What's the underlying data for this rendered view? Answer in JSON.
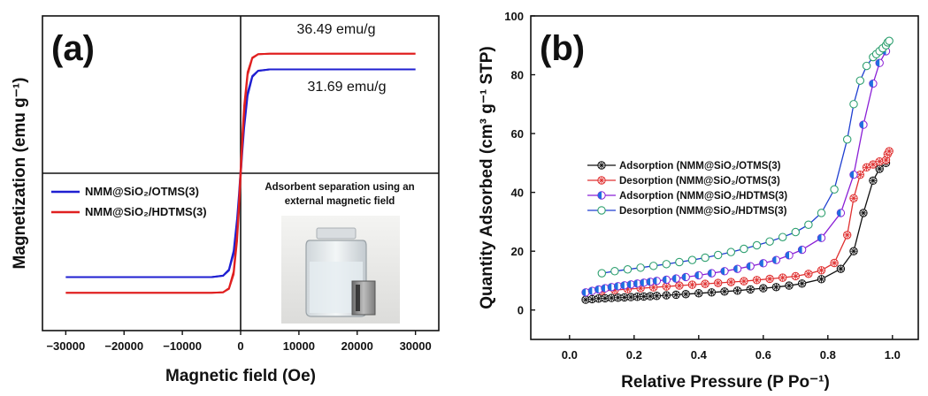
{
  "chart_data": [
    {
      "type": "line",
      "panel_label": "(a)",
      "xlabel": "Magnetic field (Oe)",
      "ylabel": "Magnetization (emu g⁻¹)",
      "xlim": [
        -34000,
        34000
      ],
      "ylim": [
        -48,
        48
      ],
      "xticks": [
        -30000,
        -20000,
        -10000,
        0,
        10000,
        20000,
        30000
      ],
      "series": [
        {
          "name": "NMM@SiO₂/OTMS(3)",
          "color": "#1f1fd1",
          "ms": 31.69,
          "hc": 1200,
          "x": [
            -30000,
            -20000,
            -10000,
            -5000,
            -3000,
            -2000,
            -1200,
            -600,
            -300,
            0,
            300,
            600,
            1200,
            2000,
            3000,
            5000,
            10000,
            20000,
            30000
          ]
        },
        {
          "name": "NMM@SiO₂/HDTMS(3)",
          "color": "#e02020",
          "ms": 36.49,
          "hc": 1000,
          "x": [
            -30000,
            -20000,
            -10000,
            -5000,
            -3000,
            -2000,
            -1200,
            -600,
            -300,
            0,
            300,
            600,
            1200,
            2000,
            3000,
            5000,
            10000,
            20000,
            30000
          ]
        }
      ],
      "annotations": {
        "hdtms_value": "36.49 emu/g",
        "otms_value": "31.69 emu/g"
      },
      "inset_caption_line1": "Adsorbent separation using an",
      "inset_caption_line2": "external magnetic field",
      "grid": false,
      "legend_position": "lower-left",
      "center_lines": true
    },
    {
      "type": "scatter",
      "panel_label": "(b)",
      "xlabel": "Relative Pressure (P Po⁻¹)",
      "ylabel": "Quantity Adsorbed (cm³ g⁻¹ STP)",
      "xlim": [
        -0.12,
        1.08
      ],
      "ylim": [
        -10,
        100
      ],
      "xticks": [
        0.0,
        0.2,
        0.4,
        0.6,
        0.8,
        1.0
      ],
      "yticks": [
        0,
        20,
        40,
        60,
        80,
        100
      ],
      "series": [
        {
          "name": "Adsorption (NMM@SiO₂/OTMS(3)",
          "color": "#111111",
          "marker": "crossed-circle",
          "x": [
            0.05,
            0.07,
            0.09,
            0.11,
            0.13,
            0.15,
            0.17,
            0.19,
            0.21,
            0.23,
            0.25,
            0.27,
            0.3,
            0.33,
            0.36,
            0.4,
            0.44,
            0.48,
            0.52,
            0.56,
            0.6,
            0.64,
            0.68,
            0.72,
            0.78,
            0.84,
            0.88,
            0.91,
            0.94,
            0.96,
            0.98
          ],
          "y": [
            3.5,
            3.7,
            3.9,
            4.0,
            4.1,
            4.2,
            4.3,
            4.4,
            4.5,
            4.6,
            4.7,
            4.8,
            5.0,
            5.2,
            5.4,
            5.7,
            6.0,
            6.3,
            6.6,
            7.0,
            7.4,
            7.8,
            8.3,
            9.0,
            10.5,
            14.0,
            20.0,
            33.0,
            44.0,
            48.0,
            50.0
          ]
        },
        {
          "name": "Desorption (NMM@SiO₂/OTMS(3)",
          "color": "#e03030",
          "marker": "crossed-circle",
          "x": [
            0.1,
            0.14,
            0.18,
            0.22,
            0.26,
            0.3,
            0.34,
            0.38,
            0.42,
            0.46,
            0.5,
            0.54,
            0.58,
            0.62,
            0.66,
            0.7,
            0.74,
            0.78,
            0.82,
            0.86,
            0.88,
            0.9,
            0.92,
            0.94,
            0.96,
            0.98,
            0.985,
            0.99
          ],
          "y": [
            6.5,
            6.8,
            7.1,
            7.4,
            7.7,
            8.0,
            8.3,
            8.6,
            8.9,
            9.2,
            9.5,
            9.8,
            10.2,
            10.6,
            11.0,
            11.5,
            12.3,
            13.5,
            16.0,
            25.5,
            38.0,
            46.0,
            48.5,
            49.5,
            50.5,
            51.0,
            53.0,
            54.0
          ]
        },
        {
          "name": "Adsorption (NMM@SiO₂/HDTMS(3)",
          "color": "#8a1fd6",
          "marker": "half-filled",
          "x": [
            0.05,
            0.07,
            0.09,
            0.11,
            0.13,
            0.15,
            0.17,
            0.19,
            0.21,
            0.23,
            0.25,
            0.27,
            0.3,
            0.33,
            0.36,
            0.4,
            0.44,
            0.48,
            0.52,
            0.56,
            0.6,
            0.64,
            0.68,
            0.72,
            0.78,
            0.84,
            0.88,
            0.91,
            0.94,
            0.96,
            0.98
          ],
          "y": [
            6.0,
            6.5,
            7.0,
            7.4,
            7.8,
            8.1,
            8.4,
            8.7,
            9.0,
            9.3,
            9.6,
            9.9,
            10.3,
            10.7,
            11.2,
            11.8,
            12.5,
            13.2,
            14.0,
            14.9,
            15.9,
            17.0,
            18.6,
            20.5,
            24.5,
            33.0,
            46.0,
            63.0,
            77.0,
            84.0,
            88.0
          ]
        },
        {
          "name": "Desorption (NMM@SiO₂/HDTMS(3)",
          "color": "#1f3fd1",
          "marker": "open-circle",
          "fill": "#2fa070",
          "x": [
            0.1,
            0.14,
            0.18,
            0.22,
            0.26,
            0.3,
            0.34,
            0.38,
            0.42,
            0.46,
            0.5,
            0.54,
            0.58,
            0.62,
            0.66,
            0.7,
            0.74,
            0.78,
            0.82,
            0.86,
            0.88,
            0.9,
            0.92,
            0.94,
            0.95,
            0.96,
            0.97,
            0.98,
            0.985,
            0.99
          ],
          "y": [
            12.5,
            13.2,
            13.8,
            14.4,
            15.0,
            15.6,
            16.3,
            17.0,
            17.8,
            18.7,
            19.7,
            20.8,
            22.0,
            23.3,
            24.8,
            26.5,
            29.0,
            33.0,
            41.0,
            58.0,
            70.0,
            78.0,
            83.0,
            86.0,
            87.0,
            88.0,
            89.0,
            90.0,
            91.0,
            91.5
          ]
        }
      ],
      "grid": false,
      "legend_position": "center-left"
    }
  ]
}
